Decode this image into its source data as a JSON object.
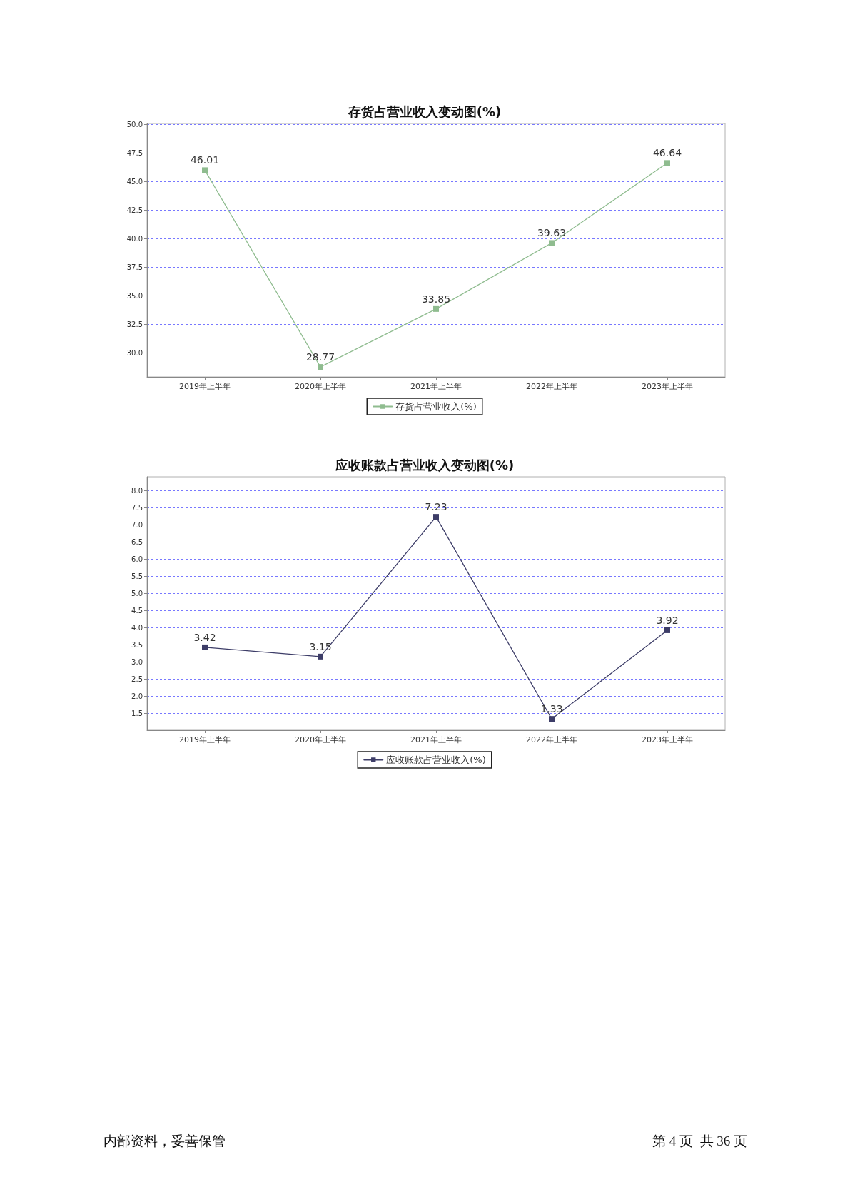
{
  "chart_data": [
    {
      "type": "line",
      "title": "存货占营业收入变动图(%)",
      "categories": [
        "2019年上半年",
        "2020年上半年",
        "2021年上半年",
        "2022年上半年",
        "2023年上半年"
      ],
      "series": [
        {
          "name": "存货占营业收入(%)",
          "color": "#8fbc8f",
          "values": [
            46.01,
            28.77,
            33.85,
            39.63,
            46.64
          ]
        }
      ],
      "ylim": [
        27.9,
        50.1
      ],
      "yticks": [
        {
          "value": 30,
          "label": "30.0"
        },
        32.5,
        {
          "value": 35,
          "label": "35.0"
        },
        37.5,
        {
          "value": 40,
          "label": "40.0"
        },
        42.5,
        {
          "value": 45,
          "label": "45.0"
        },
        47.5,
        {
          "value": 50,
          "label": "50.0"
        }
      ],
      "grid": "y",
      "legend": "bottom",
      "marker": "square",
      "line_style": "solid",
      "data_labels": true
    },
    {
      "type": "line",
      "title": "应收账款占营业收入变动图(%)",
      "categories": [
        "2019年上半年",
        "2020年上半年",
        "2021年上半年",
        "2022年上半年",
        "2023年上半年"
      ],
      "series": [
        {
          "name": "应收账款占营业收入(%)",
          "color": "#3d3d68",
          "values": [
            3.42,
            3.15,
            7.23,
            1.33,
            3.92
          ]
        }
      ],
      "ylim": [
        1.0,
        8.4
      ],
      "yticks": [
        1.5,
        {
          "value": 2,
          "label": "2.0"
        },
        2.5,
        {
          "value": 3,
          "label": "3.0"
        },
        3.5,
        {
          "value": 4,
          "label": "4.0"
        },
        4.5,
        {
          "value": 5,
          "label": "5.0"
        },
        5.5,
        {
          "value": 6,
          "label": "6.0"
        },
        6.5,
        {
          "value": 7,
          "label": "7.0"
        },
        7.5,
        {
          "value": 8,
          "label": "8.0"
        }
      ],
      "grid": "y",
      "legend": "bottom",
      "marker": "square",
      "line_style": "solid",
      "data_labels": true,
      "annotations": [
        "内部资料，妥善保管",
        "第 4 页  共 36 页"
      ]
    }
  ]
}
